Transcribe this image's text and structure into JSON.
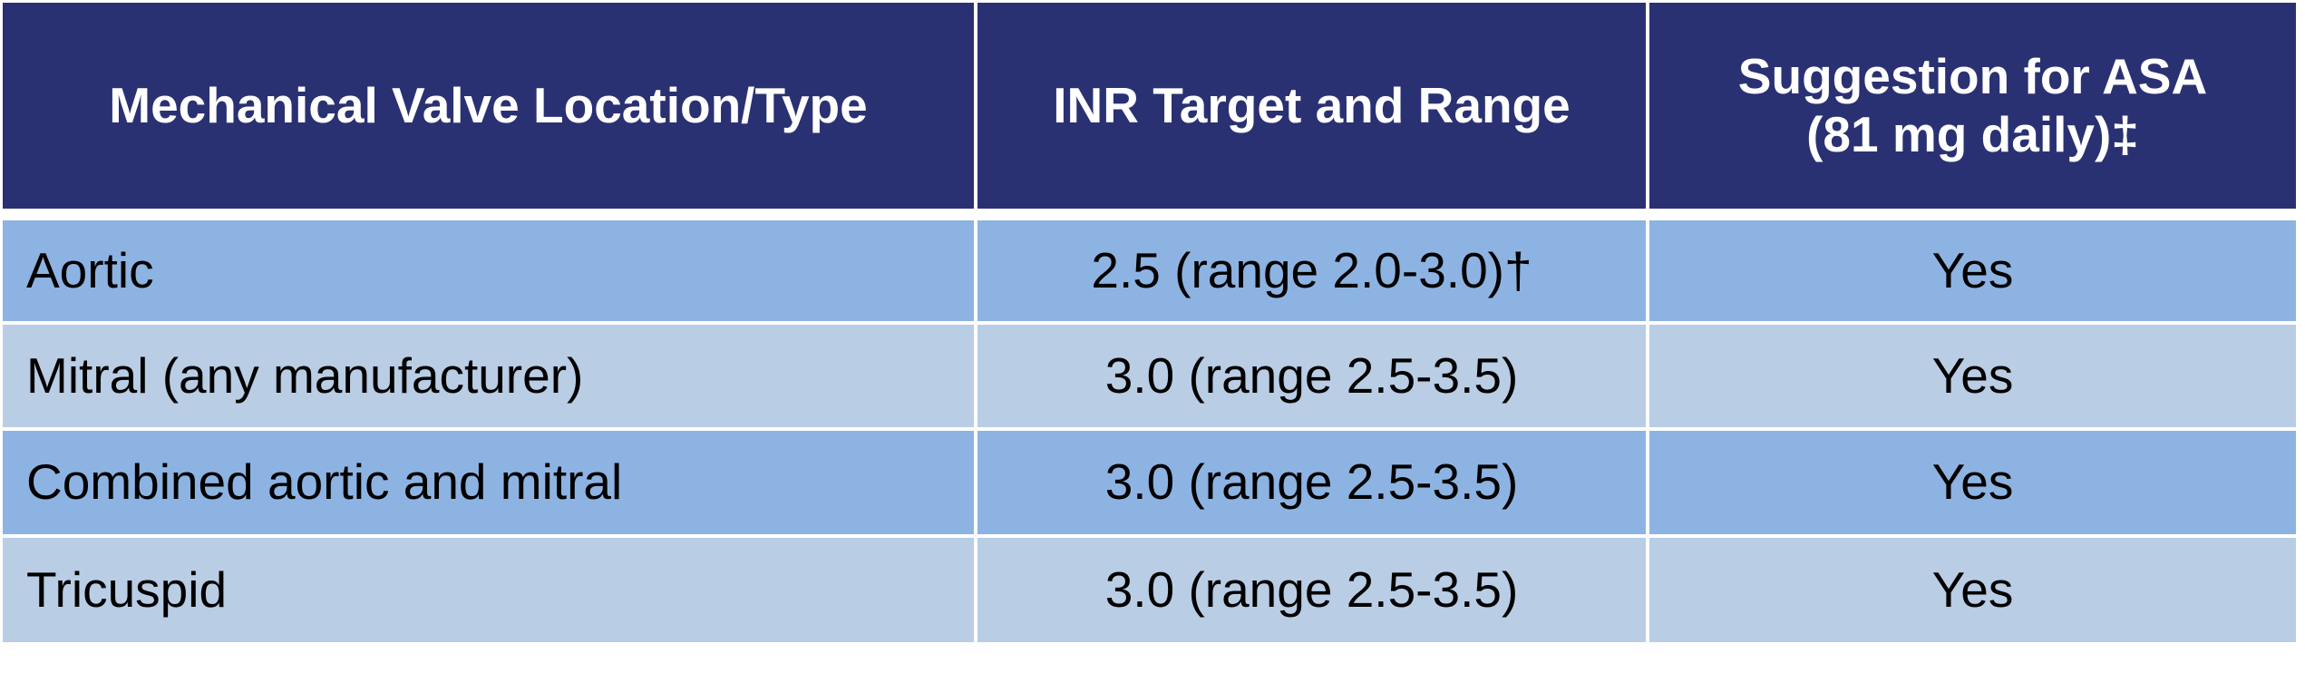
{
  "header": {
    "columns": [
      "Mechanical Valve Location/Type",
      "INR Target and Range",
      "Suggestion for ASA (81 mg daily)‡"
    ]
  },
  "table": {
    "rows": [
      [
        "Aortic",
        "2.5 (range 2.0-3.0)†",
        "Yes"
      ],
      [
        "Mitral (any manufacturer)",
        "3.0 (range 2.5-3.5)",
        "Yes"
      ],
      [
        "Combined aortic and mitral",
        "3.0 (range 2.5-3.5)",
        "Yes"
      ],
      [
        "Tricuspid",
        "3.0 (range 2.5-3.5)",
        "Yes"
      ]
    ]
  }
}
